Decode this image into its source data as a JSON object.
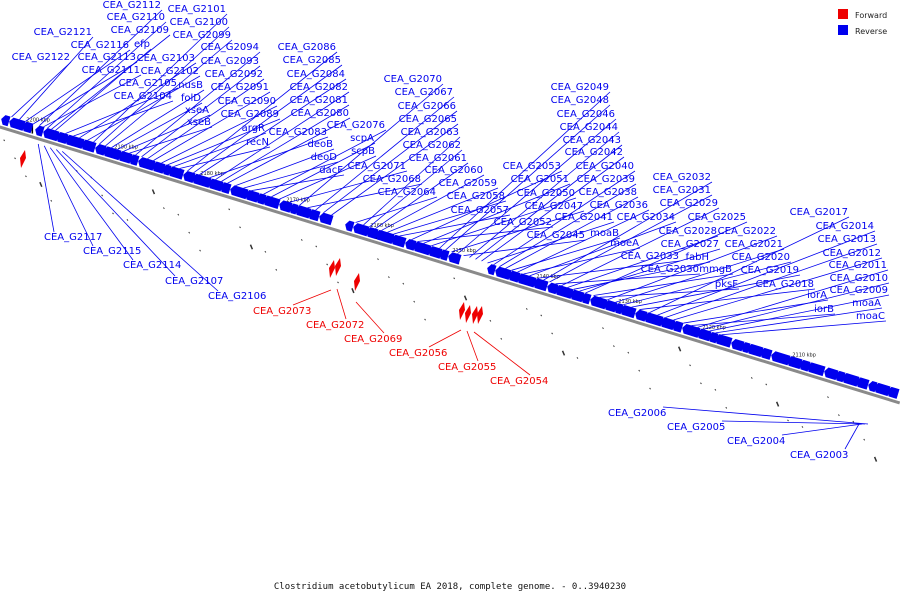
{
  "caption": "Clostridium acetobutylicum EA 2018, complete genome. - 0..3940230",
  "legend": [
    {
      "label": "Forward",
      "color": "#ee0000"
    },
    {
      "label": "Reverse",
      "color": "#0000ee"
    }
  ],
  "colors": {
    "forward": "#ee0000",
    "reverse": "#0000ee",
    "backbone": "#8a8a8a"
  },
  "ticks": [
    "2200 kbp",
    "2190 kbp",
    "2180 kbp",
    "2170 kbp",
    "2160 kbp",
    "2150 kbp",
    "2140 kbp",
    "2130 kbp",
    "2120 kbp",
    "2110 kbp"
  ],
  "labels": {
    "reverse_top": [
      "CEA_G2122",
      "CEA_G2121",
      "CEA_G2116",
      "CEA_G2113",
      "CEA_G2112",
      "CEA_G2111",
      "CEA_G2110",
      "CEA_G2109",
      "efp",
      "CEA_G2105",
      "CEA_G2104",
      "CEA_G2103",
      "CEA_G2102",
      "CEA_G2101",
      "CEA_G2100",
      "CEA_G2099",
      "nusB",
      "folD",
      "xseA",
      "xseB",
      "CEA_G2094",
      "CEA_G2093",
      "CEA_G2092",
      "CEA_G2091",
      "CEA_G2090",
      "CEA_G2089",
      "argR",
      "recN",
      "CEA_G2086",
      "CEA_G2085",
      "CEA_G2084",
      "CEA_G2083",
      "CEA_G2082",
      "CEA_G2081",
      "CEA_G2080",
      "deoB",
      "deoD",
      "dacF",
      "CEA_G2076",
      "scpA",
      "scpB",
      "CEA_G2071",
      "CEA_G2070",
      "CEA_G2068",
      "CEA_G2067",
      "CEA_G2066",
      "CEA_G2065",
      "CEA_G2064",
      "CEA_G2063",
      "CEA_G2062",
      "CEA_G2061",
      "CEA_G2060",
      "CEA_G2059",
      "CEA_G2058",
      "CEA_G2057",
      "CEA_G2053",
      "CEA_G2052",
      "CEA_G2051",
      "CEA_G2050",
      "CEA_G2049",
      "CEA_G2048",
      "CEA_G2047",
      "CEA_G2046",
      "CEA_G2045",
      "CEA_G2044",
      "CEA_G2043",
      "CEA_G2042",
      "CEA_G2041",
      "CEA_G2040",
      "CEA_G2039",
      "CEA_G2038",
      "moaB",
      "CEA_G2036",
      "moeA",
      "CEA_G2034",
      "CEA_G2033",
      "CEA_G2032",
      "CEA_G2031",
      "CEA_G2030",
      "CEA_G2029",
      "CEA_G2028",
      "fabH",
      "CEA_G2027",
      "CEA_G2025",
      "mmgB",
      "pksF",
      "CEA_G2022",
      "CEA_G2021",
      "CEA_G2020",
      "CEA_G2019",
      "CEA_G2018",
      "CEA_G2017",
      "CEA_G2014",
      "CEA_G2013",
      "CEA_G2012",
      "iorA",
      "iorB",
      "CEA_G2011",
      "CEA_G2010",
      "CEA_G2009",
      "moaA",
      "moaC"
    ],
    "reverse_bottom_left": [
      "CEA_G2117",
      "CEA_G2115",
      "CEA_G2114",
      "CEA_G2107",
      "CEA_G2106"
    ],
    "reverse_bottom_right": [
      "CEA_G2006",
      "CEA_G2005",
      "CEA_G2004",
      "CEA_G2003"
    ],
    "forward": [
      "CEA_G2073",
      "CEA_G2072",
      "CEA_G2069",
      "CEA_G2056",
      "CEA_G2055",
      "CEA_G2054"
    ]
  }
}
